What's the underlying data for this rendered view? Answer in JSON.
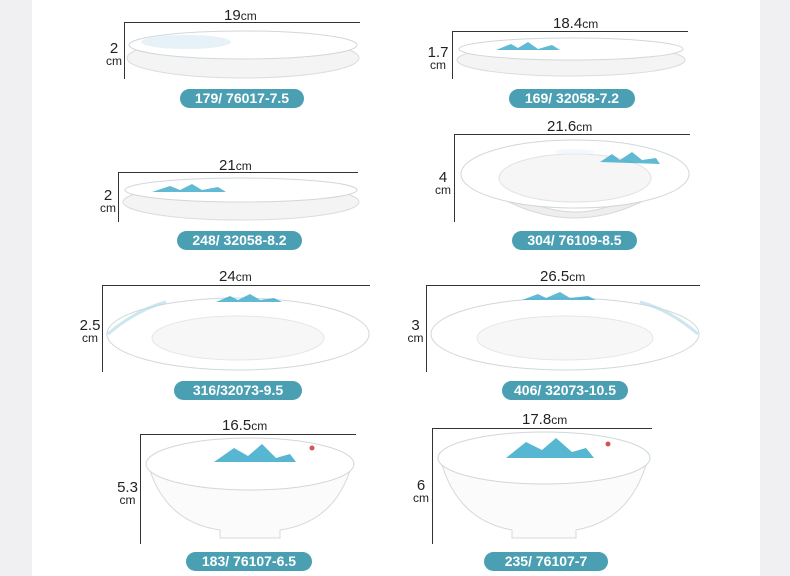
{
  "unit": "cm",
  "colors": {
    "badge": "#4a9fb2",
    "accent": "#3aa9c9",
    "ink": "#222222"
  },
  "items": [
    {
      "width": "19",
      "height": "2",
      "code": "179/ 76017-7.5"
    },
    {
      "width": "18.4",
      "height": "1.7",
      "code": "169/ 32058-7.2"
    },
    {
      "width": "21",
      "height": "2",
      "code": "248/ 32058-8.2"
    },
    {
      "width": "21.6",
      "height": "4",
      "code": "304/ 76109-8.5"
    },
    {
      "width": "24",
      "height": "2.5",
      "code": "316/32073-9.5"
    },
    {
      "width": "26.5",
      "height": "3",
      "code": "406/ 32073-10.5"
    },
    {
      "width": "16.5",
      "height": "5.3",
      "code": "183/ 76107-6.5"
    },
    {
      "width": "17.8",
      "height": "6",
      "code": "235/ 76107-7"
    }
  ]
}
